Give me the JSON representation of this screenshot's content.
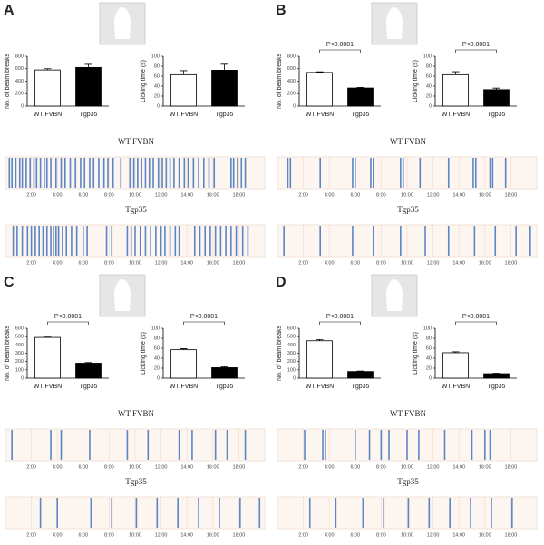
{
  "panels": [
    "A",
    "B",
    "C",
    "D"
  ],
  "chart_data": [
    {
      "type": "bar",
      "categories": [
        "WT FVBN",
        "Tgp35"
      ],
      "values": [
        580,
        620
      ],
      "errors": [
        20,
        50
      ],
      "colors": [
        "#ffffff",
        "#000000"
      ],
      "ylabel": "No. of beam breaks",
      "ylim": [
        0,
        800
      ],
      "yticks": [
        0,
        200,
        400,
        600,
        800
      ]
    },
    {
      "type": "bar",
      "categories": [
        "WT FVBN",
        "Tgp35"
      ],
      "values": [
        63,
        72
      ],
      "errors": [
        8,
        12
      ],
      "colors": [
        "#ffffff",
        "#000000"
      ],
      "ylabel": "Licking time (s)",
      "ylim": [
        0,
        100
      ],
      "yticks": [
        0,
        20,
        40,
        60,
        80,
        100
      ]
    },
    {
      "type": "event",
      "title": "WT FVBN",
      "x": [
        0.3,
        0.5,
        0.8,
        1.1,
        1.3,
        1.6,
        1.9,
        2.2,
        2.4,
        2.7,
        3.0,
        3.2,
        3.5,
        3.9,
        4.3,
        4.6,
        5.0,
        5.4,
        5.8,
        6.1,
        6.5,
        6.8,
        7.2,
        7.6,
        7.9,
        8.3,
        8.9,
        9.6,
        9.9,
        10.2,
        10.5,
        10.8,
        11.1,
        11.4,
        11.8,
        12.1,
        12.4,
        12.7,
        13.0,
        13.4,
        13.8,
        14.1,
        14.5,
        14.9,
        15.3,
        15.7,
        16.1,
        17.4,
        17.6,
        17.9,
        18.2,
        18.5
      ],
      "xlim": [
        0,
        20
      ],
      "xticks": [
        {
          "value": 2,
          "label": "2:00"
        },
        {
          "value": 4,
          "label": "4:00"
        },
        {
          "value": 6,
          "label": "6:00"
        },
        {
          "value": 8,
          "label": "8:00"
        },
        {
          "value": 10,
          "label": "10:00"
        },
        {
          "value": 12,
          "label": "12:00"
        },
        {
          "value": 14,
          "label": "14:00"
        },
        {
          "value": 16,
          "label": "16:00"
        },
        {
          "value": 18,
          "label": "18:00"
        }
      ],
      "color": "#5b86c5",
      "background": "#fdf5ef",
      "grid": true
    },
    {
      "type": "event",
      "title": "Tgp35",
      "x": [
        0.6,
        0.9,
        1.3,
        1.7,
        2.0,
        2.3,
        2.6,
        2.9,
        3.2,
        3.5,
        3.7,
        3.9,
        4.1,
        4.4,
        4.7,
        5.1,
        5.5,
        6.0,
        6.3,
        7.8,
        8.2,
        9.4,
        9.7,
        10.0,
        10.4,
        10.8,
        11.2,
        11.6,
        12.0,
        12.3,
        12.7,
        13.1,
        13.4,
        14.6,
        15.0,
        15.4,
        15.8,
        16.2,
        16.6,
        17.0,
        17.4,
        17.8,
        18.3,
        18.7
      ],
      "xlim": [
        0,
        20
      ],
      "xticks": [
        {
          "value": 2,
          "label": "2:00"
        },
        {
          "value": 4,
          "label": "4:00"
        },
        {
          "value": 6,
          "label": "6:00"
        },
        {
          "value": 8,
          "label": "8:00"
        },
        {
          "value": 10,
          "label": "10:00"
        },
        {
          "value": 12,
          "label": "12:00"
        },
        {
          "value": 14,
          "label": "14:00"
        },
        {
          "value": 16,
          "label": "16:00"
        },
        {
          "value": 18,
          "label": "18:00"
        }
      ],
      "color": "#5b86c5",
      "background": "#fdf5ef",
      "grid": true
    },
    {
      "type": "bar",
      "categories": [
        "WT FVBN",
        "Tgp35"
      ],
      "values": [
        540,
        290
      ],
      "errors": [
        10,
        10
      ],
      "colors": [
        "#ffffff",
        "#000000"
      ],
      "ylabel": "No. of beam breaks",
      "ylim": [
        0,
        800
      ],
      "yticks": [
        0,
        200,
        400,
        600,
        800
      ],
      "annotation": "P<0.0001"
    },
    {
      "type": "bar",
      "categories": [
        "WT FVBN",
        "Tgp35"
      ],
      "values": [
        63,
        33
      ],
      "errors": [
        6,
        3
      ],
      "colors": [
        "#ffffff",
        "#000000"
      ],
      "ylabel": "Licking time (s)",
      "ylim": [
        0,
        100
      ],
      "yticks": [
        0,
        20,
        40,
        60,
        80,
        100
      ],
      "annotation": "P<0.0001"
    },
    {
      "type": "event",
      "title": "WT FVBN",
      "x": [
        0.8,
        1.0,
        3.3,
        5.8,
        6.0,
        7.2,
        7.4,
        9.5,
        9.7,
        11.0,
        13.2,
        15.1,
        15.3,
        16.4,
        16.6,
        17.6
      ],
      "xlim": [
        0,
        20
      ],
      "xticks": [
        {
          "value": 2,
          "label": "2:00"
        },
        {
          "value": 4,
          "label": "4:00"
        },
        {
          "value": 6,
          "label": "6:00"
        },
        {
          "value": 8,
          "label": "8:00"
        },
        {
          "value": 10,
          "label": "10:00"
        },
        {
          "value": 12,
          "label": "12:00"
        },
        {
          "value": 14,
          "label": "14:00"
        },
        {
          "value": 16,
          "label": "16:00"
        },
        {
          "value": 18,
          "label": "18:00"
        }
      ],
      "color": "#5b86c5",
      "background": "#fdf5ef",
      "grid": true
    },
    {
      "type": "event",
      "title": "Tgp35",
      "x": [
        0.5,
        3.3,
        5.8,
        7.4,
        9.5,
        11.4,
        13.2,
        15.2,
        16.8,
        18.4,
        19.5
      ],
      "xlim": [
        0,
        20
      ],
      "xticks": [
        {
          "value": 2,
          "label": "2:00"
        },
        {
          "value": 4,
          "label": "4:00"
        },
        {
          "value": 6,
          "label": "6:00"
        },
        {
          "value": 8,
          "label": "8:00"
        },
        {
          "value": 10,
          "label": "10:00"
        },
        {
          "value": 12,
          "label": "12:00"
        },
        {
          "value": 14,
          "label": "14:00"
        },
        {
          "value": 16,
          "label": "16:00"
        },
        {
          "value": 18,
          "label": "18:00"
        }
      ],
      "color": "#5b86c5",
      "background": "#fdf5ef",
      "grid": true
    },
    {
      "type": "bar",
      "categories": [
        "WT FVBN",
        "Tgp35"
      ],
      "values": [
        490,
        180
      ],
      "errors": [
        5,
        8
      ],
      "colors": [
        "#ffffff",
        "#000000"
      ],
      "ylabel": "No. of beam breaks",
      "ylim": [
        0,
        600
      ],
      "yticks": [
        0,
        100,
        200,
        300,
        400,
        500,
        600
      ],
      "annotation": "P<0.0001"
    },
    {
      "type": "bar",
      "categories": [
        "WT FVBN",
        "Tgp35"
      ],
      "values": [
        57,
        21
      ],
      "errors": [
        2,
        2
      ],
      "colors": [
        "#ffffff",
        "#000000"
      ],
      "ylabel": "Licking time (s)",
      "ylim": [
        0,
        100
      ],
      "yticks": [
        0,
        20,
        40,
        60,
        80,
        100
      ],
      "annotation": "P<0.0001"
    },
    {
      "type": "event",
      "title": "WT FVBN",
      "x": [
        0.5,
        3.5,
        4.3,
        6.5,
        9.4,
        11.0,
        13.4,
        14.4,
        16.2,
        17.1,
        18.5
      ],
      "xlim": [
        0,
        20
      ],
      "xticks": [
        {
          "value": 2,
          "label": "2:00"
        },
        {
          "value": 4,
          "label": "4:00"
        },
        {
          "value": 6,
          "label": "6:00"
        },
        {
          "value": 8,
          "label": "8:00"
        },
        {
          "value": 10,
          "label": "10:00"
        },
        {
          "value": 12,
          "label": "12:00"
        },
        {
          "value": 14,
          "label": "14:00"
        },
        {
          "value": 16,
          "label": "16:00"
        },
        {
          "value": 18,
          "label": "18:00"
        }
      ],
      "color": "#5b86c5",
      "background": "#fdf5ef",
      "grid": true
    },
    {
      "type": "event",
      "title": "Tgp35",
      "x": [
        2.7,
        4.0,
        6.6,
        8.2,
        10.1,
        11.7,
        13.3,
        14.9,
        16.5,
        18.1,
        19.6
      ],
      "xlim": [
        0,
        20
      ],
      "xticks": [
        {
          "value": 2,
          "label": "2:00"
        },
        {
          "value": 4,
          "label": "4:00"
        },
        {
          "value": 6,
          "label": "6:00"
        },
        {
          "value": 8,
          "label": "8:00"
        },
        {
          "value": 10,
          "label": "10:00"
        },
        {
          "value": 12,
          "label": "12:00"
        },
        {
          "value": 14,
          "label": "14:00"
        },
        {
          "value": 16,
          "label": "16:00"
        },
        {
          "value": 18,
          "label": "18:00"
        }
      ],
      "color": "#5b86c5",
      "background": "#fdf5ef",
      "grid": true
    },
    {
      "type": "bar",
      "categories": [
        "WT FVBN",
        "Tgp35"
      ],
      "values": [
        450,
        80
      ],
      "errors": [
        15,
        5
      ],
      "colors": [
        "#ffffff",
        "#000000"
      ],
      "ylabel": "No. of beam breaks",
      "ylim": [
        0,
        600
      ],
      "yticks": [
        0,
        100,
        200,
        300,
        400,
        500,
        600
      ],
      "annotation": "P<0.0001"
    },
    {
      "type": "bar",
      "categories": [
        "WT FVBN",
        "Tgp35"
      ],
      "values": [
        51,
        9
      ],
      "errors": [
        2,
        1
      ],
      "colors": [
        "#ffffff",
        "#000000"
      ],
      "ylabel": "Licking time (s)",
      "ylim": [
        0,
        100
      ],
      "yticks": [
        0,
        20,
        40,
        60,
        80,
        100
      ],
      "annotation": "P<0.0001"
    },
    {
      "type": "event",
      "title": "WT FVBN",
      "x": [
        2.1,
        3.5,
        3.7,
        6.0,
        7.1,
        8.0,
        8.6,
        10.0,
        10.9,
        12.9,
        15.0,
        16.0,
        16.4
      ],
      "xlim": [
        0,
        20
      ],
      "xticks": [
        {
          "value": 2,
          "label": "2:00"
        },
        {
          "value": 4,
          "label": "4:00"
        },
        {
          "value": 6,
          "label": "6:00"
        },
        {
          "value": 8,
          "label": "8:00"
        },
        {
          "value": 10,
          "label": "10:00"
        },
        {
          "value": 12,
          "label": "12:00"
        },
        {
          "value": 14,
          "label": "14:00"
        },
        {
          "value": 16,
          "label": "16:00"
        },
        {
          "value": 18,
          "label": "18:00"
        }
      ],
      "color": "#5b86c5",
      "background": "#fdf5ef",
      "grid": true
    },
    {
      "type": "event",
      "title": "Tgp35",
      "x": [
        2.5,
        4.5,
        6.6,
        8.2,
        10.1,
        11.7,
        13.3,
        14.9,
        16.5,
        18.1
      ],
      "xlim": [
        0,
        20
      ],
      "xticks": [
        {
          "value": 2,
          "label": "2:00"
        },
        {
          "value": 4,
          "label": "4:00"
        },
        {
          "value": 6,
          "label": "6:00"
        },
        {
          "value": 8,
          "label": "8:00"
        },
        {
          "value": 10,
          "label": "10:00"
        },
        {
          "value": 12,
          "label": "12:00"
        },
        {
          "value": 14,
          "label": "14:00"
        },
        {
          "value": 16,
          "label": "16:00"
        },
        {
          "value": 18,
          "label": "18:00"
        }
      ],
      "color": "#5b86c5",
      "background": "#fdf5ef",
      "grid": true
    }
  ]
}
